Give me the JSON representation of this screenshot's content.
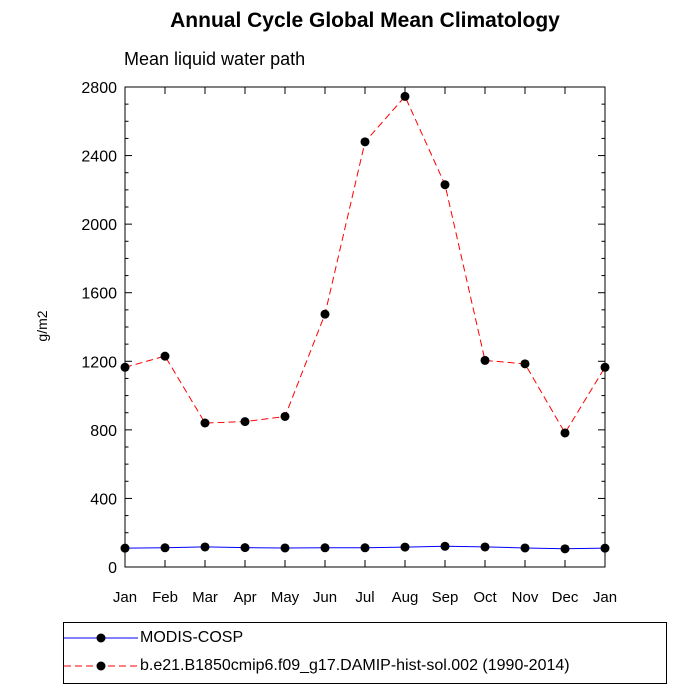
{
  "chart_data": {
    "type": "line",
    "title": "Annual Cycle Global Mean Climatology",
    "subtitle": "Mean liquid water path",
    "xlabel": "",
    "ylabel": "g/m2",
    "categories": [
      "Jan",
      "Feb",
      "Mar",
      "Apr",
      "May",
      "Jun",
      "Jul",
      "Aug",
      "Sep",
      "Oct",
      "Nov",
      "Dec",
      "Jan"
    ],
    "ylim": [
      0,
      2800
    ],
    "yticks": [
      0,
      400,
      800,
      1200,
      1600,
      2000,
      2400,
      2800
    ],
    "grid": false,
    "legend_position": "bottom",
    "series": [
      {
        "name": "MODIS-COSP",
        "color": "#0000ff",
        "linestyle": "solid",
        "marker": "filled-circle",
        "values": [
          110,
          112,
          117,
          113,
          111,
          112,
          112,
          116,
          121,
          117,
          111,
          106,
          110
        ]
      },
      {
        "name": "b.e21.B1850cmip6.f09_g17.DAMIP-hist-sol.002 (1990-2014)",
        "color": "#ff0000",
        "linestyle": "dashed",
        "marker": "filled-circle",
        "values": [
          1165,
          1230,
          840,
          848,
          878,
          1475,
          2480,
          2745,
          2230,
          1205,
          1185,
          782,
          1165
        ]
      }
    ]
  }
}
